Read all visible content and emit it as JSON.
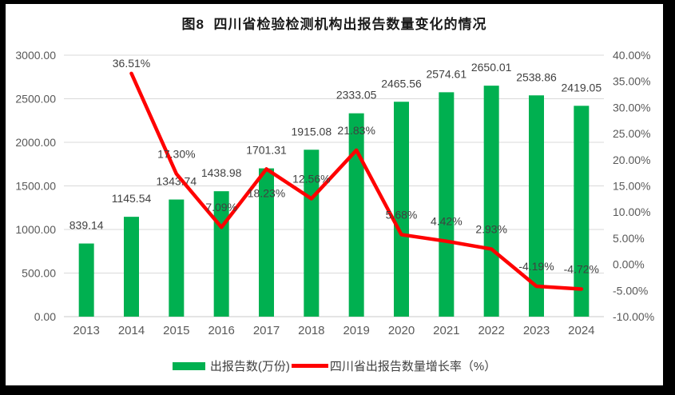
{
  "title": "图8  四川省检验检测机构出报告数量变化的情况",
  "legend": {
    "bar_label": "出报告数(万份)",
    "line_label": "四川省出报告数量增长率（%）"
  },
  "colors": {
    "bar": "#00B050",
    "line": "#FF0000",
    "gridline": "#D9D9D9",
    "axis_line": "#C9C9C9",
    "tick_text": "#595959",
    "data_label_text": "#404040",
    "background": "#FFFFFF",
    "frame": "#000000"
  },
  "chart_data": {
    "type": "bar",
    "subtype": "bar+line combo, dual axis",
    "title": "图8  四川省检验检测机构出报告数量变化的情况",
    "categories": [
      "2013",
      "2014",
      "2015",
      "2016",
      "2017",
      "2018",
      "2019",
      "2020",
      "2021",
      "2022",
      "2023",
      "2024"
    ],
    "series": [
      {
        "name": "出报告数(万份)",
        "type": "bar",
        "axis": "left",
        "color": "#00B050",
        "values": [
          839.14,
          1145.54,
          1343.74,
          1438.98,
          1701.31,
          1915.08,
          2333.05,
          2465.56,
          2574.61,
          2650.01,
          2538.86,
          2419.05
        ],
        "data_labels": [
          "839.14",
          "1145.54",
          "1343.74",
          "1438.98",
          "1701.31",
          "1915.08",
          "2333.05",
          "2465.56",
          "2574.61",
          "2650.01",
          "2538.86",
          "2419.05"
        ]
      },
      {
        "name": "四川省出报告数量增长率（%）",
        "type": "line",
        "axis": "right",
        "color": "#FF0000",
        "values": [
          null,
          36.51,
          17.3,
          7.09,
          18.23,
          12.56,
          21.83,
          5.68,
          4.42,
          2.93,
          -4.19,
          -4.72
        ],
        "data_labels": [
          null,
          "36.51%",
          "17.30%",
          "7.09%",
          "18.23%",
          "12.56%",
          "21.83%",
          "5.68%",
          "4.42%",
          "2.93%",
          "-4.19%",
          "-4.72%"
        ]
      }
    ],
    "left_axis": {
      "min": 0,
      "max": 3000,
      "step": 500,
      "tick_labels": [
        "3000.00",
        "2500.00",
        "2000.00",
        "1500.00",
        "1000.00",
        "500.00",
        "0.00"
      ]
    },
    "right_axis": {
      "min": -10,
      "max": 40,
      "step": 5,
      "tick_labels": [
        "40.00%",
        "35.00%",
        "30.00%",
        "25.00%",
        "20.00%",
        "15.00%",
        "10.00%",
        "5.00%",
        "0.00%",
        "-5.00%",
        "-10.00%"
      ]
    },
    "grid": true,
    "legend_position": "bottom"
  }
}
